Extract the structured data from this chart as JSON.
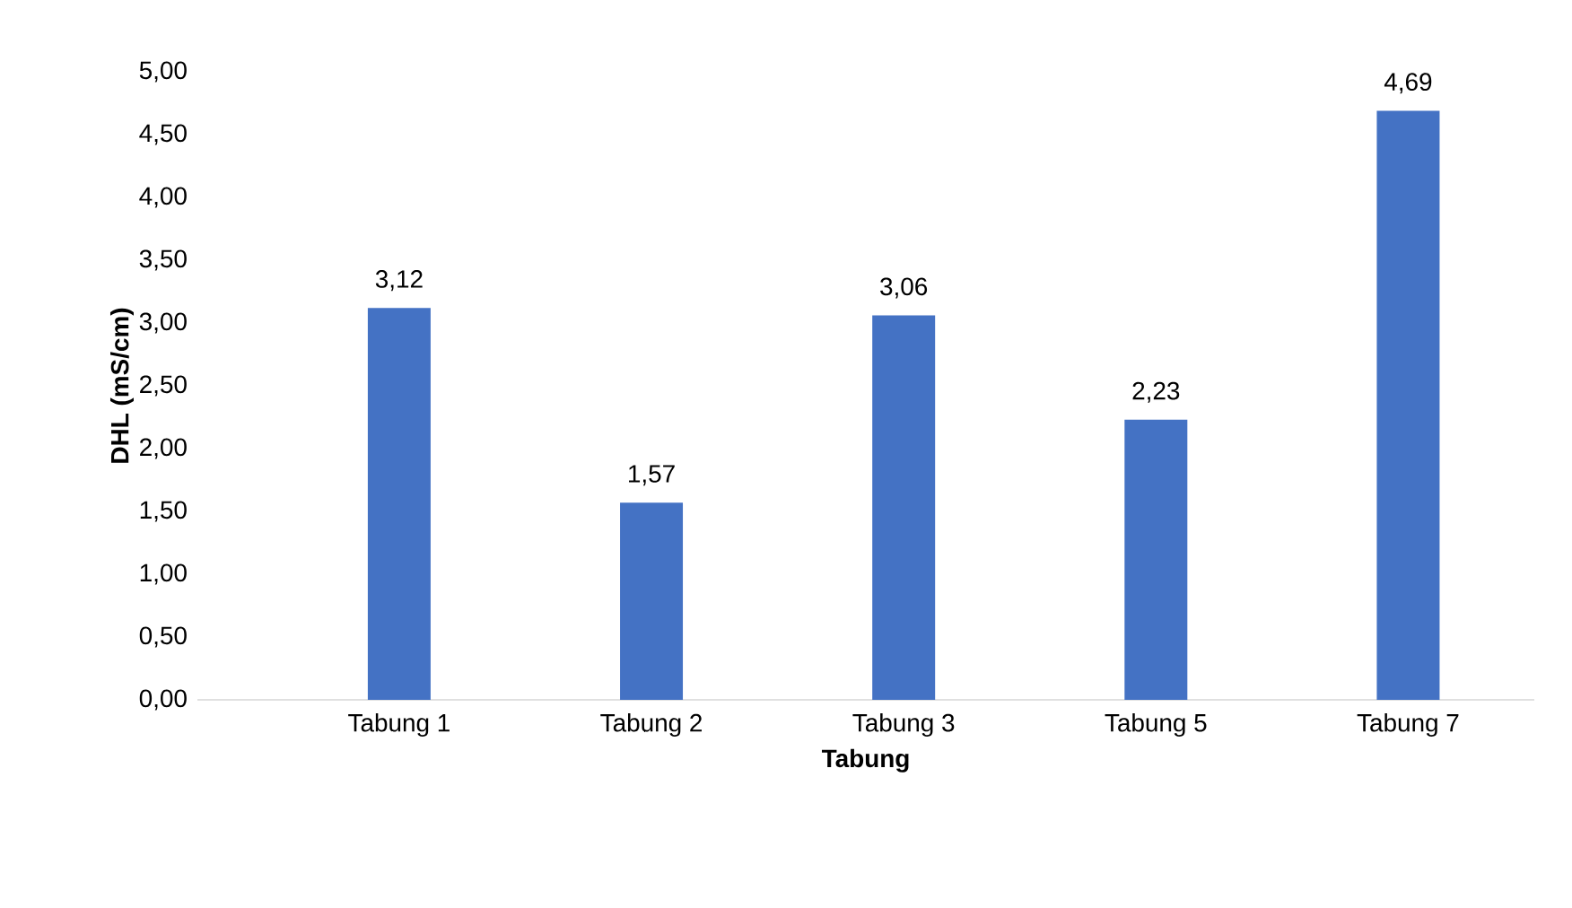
{
  "chart_data": {
    "type": "bar",
    "xlabel": "Tabung",
    "ylabel": "DHL (mS/cm)",
    "categories": [
      "Tabung 1",
      "Tabung 2",
      "Tabung 3",
      "Tabung 5",
      "Tabung 7"
    ],
    "values": [
      3.12,
      1.57,
      3.06,
      2.23,
      4.69
    ],
    "value_labels": [
      "3,12",
      "1,57",
      "3,06",
      "2,23",
      "4,69"
    ],
    "color": "#4472c4",
    "ylim": [
      0,
      5
    ],
    "yticks": [
      {
        "value": 0,
        "label": "0,00"
      },
      {
        "value": 0.5,
        "label": "0,50"
      },
      {
        "value": 1,
        "label": "1,00"
      },
      {
        "value": 1.5,
        "label": "1,50"
      },
      {
        "value": 2,
        "label": "2,00"
      },
      {
        "value": 2.5,
        "label": "2,50"
      },
      {
        "value": 3,
        "label": "3,00"
      },
      {
        "value": 3.5,
        "label": "3,50"
      },
      {
        "value": 4,
        "label": "4,00"
      },
      {
        "value": 4.5,
        "label": "4,50"
      },
      {
        "value": 5,
        "label": "5,00"
      }
    ],
    "grid": false
  }
}
